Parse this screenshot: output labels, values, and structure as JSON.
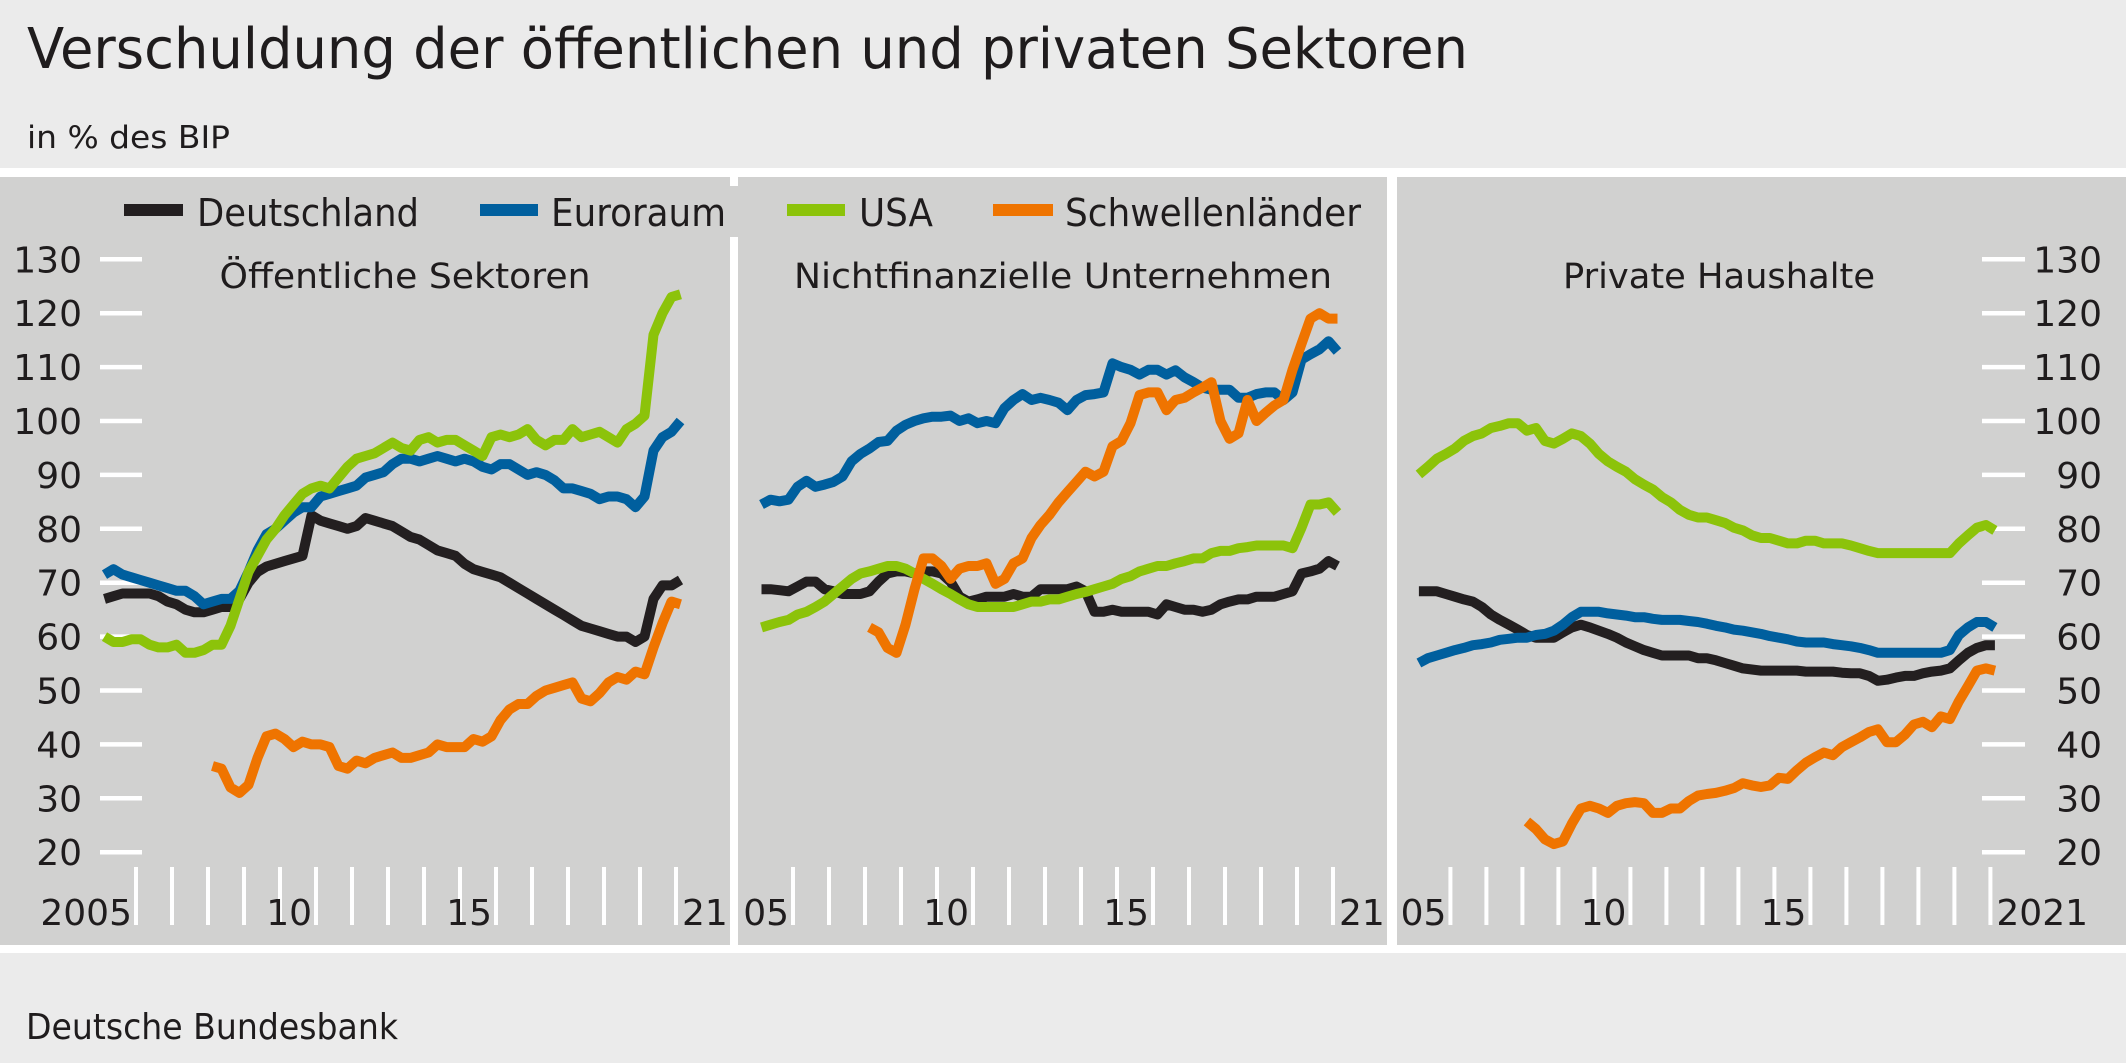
{
  "header": {
    "title": "Verschuldung der öffentlichen und privaten Sektoren",
    "subtitle": "in % des BIP"
  },
  "footer": {
    "source": "Deutsche Bundesbank"
  },
  "legend": [
    {
      "name": "Deutschland",
      "color": "#231f20"
    },
    {
      "name": "Euroraum",
      "color": "#005f9e"
    },
    {
      "name": "USA",
      "color": "#8cc30a"
    },
    {
      "name": "Schwellenländer",
      "color": "#ef7400"
    }
  ],
  "colors": {
    "panel_background": "#d1d1d0",
    "page_background": "#ebebeb",
    "gridline": "#ffffff"
  },
  "chart_data": [
    {
      "type": "line",
      "title": "Öffentliche Sektoren",
      "frequency": "quarterly",
      "x_range": [
        "2005 Q1",
        "2021 Q1"
      ],
      "x_tick_labels": [
        "2005",
        "10",
        "15",
        "21"
      ],
      "y_ticks": [
        "130",
        "120",
        "110",
        "100",
        "90",
        "80",
        "70",
        "60",
        "50",
        "40",
        "30",
        "20"
      ],
      "y_axis_side": "left",
      "ylim": [
        20,
        130
      ],
      "grid": false,
      "series": [
        {
          "name": "Deutschland",
          "color": "#231f20",
          "values": [
            67,
            67.5,
            68,
            68,
            68,
            68,
            67.5,
            66.5,
            66,
            65,
            64.5,
            64.5,
            65,
            65.5,
            65.5,
            67,
            70,
            72,
            73,
            73.5,
            74,
            74.5,
            75,
            82.5,
            81.5,
            81,
            80.5,
            80,
            80.5,
            82,
            81.5,
            81,
            80.5,
            79.5,
            78.5,
            78,
            77,
            76,
            75.5,
            75,
            73.5,
            72.5,
            72,
            71.5,
            71,
            70,
            69,
            68,
            67,
            66,
            65,
            64,
            63,
            62,
            61.5,
            61,
            60.5,
            60,
            60,
            59,
            60,
            67,
            69.5,
            69.5,
            70.5
          ]
        },
        {
          "name": "Euroraum",
          "color": "#005f9e",
          "values": [
            71.5,
            72.5,
            71.5,
            71,
            70.5,
            70,
            69.5,
            69,
            68.5,
            68.5,
            67.5,
            66,
            66.5,
            67,
            67,
            68.5,
            72,
            76,
            79,
            80,
            81.5,
            83,
            84,
            84,
            86,
            86.5,
            87,
            87.5,
            88,
            89.5,
            90,
            90.5,
            92,
            93,
            93,
            92.5,
            93,
            93.5,
            93,
            92.5,
            93,
            92.5,
            91.5,
            91,
            92,
            92,
            91,
            90,
            90.5,
            90,
            89,
            87.5,
            87.5,
            87,
            86.5,
            85.5,
            86,
            86,
            85.5,
            84,
            86,
            94.5,
            97,
            98,
            100
          ]
        },
        {
          "name": "USA",
          "color": "#8cc30a",
          "values": [
            60,
            59,
            59,
            59.5,
            59.5,
            58.5,
            58,
            58,
            58.5,
            57,
            57,
            57.5,
            58.5,
            58.5,
            62,
            67,
            72,
            75,
            78,
            80,
            82.5,
            84.5,
            86.5,
            87.5,
            88,
            87.5,
            89.5,
            91.5,
            93,
            93.5,
            94,
            95,
            96,
            95,
            94.5,
            96.5,
            97,
            96,
            96.5,
            96.5,
            95.5,
            94.5,
            93.5,
            97,
            97.5,
            97,
            97.5,
            98.5,
            96.5,
            95.5,
            96.5,
            96.5,
            98.5,
            97,
            97.5,
            98,
            97,
            96,
            98.5,
            99.5,
            101,
            116,
            120,
            123,
            123.5
          ]
        },
        {
          "name": "Schwellenländer",
          "color": "#ef7400",
          "values": [
            null,
            null,
            null,
            null,
            null,
            null,
            null,
            null,
            null,
            null,
            null,
            null,
            36,
            35.5,
            32,
            31,
            32.5,
            37.5,
            41.5,
            42,
            41,
            39.5,
            40.5,
            40,
            40,
            39.5,
            36,
            35.5,
            37,
            36.5,
            37.5,
            38,
            38.5,
            37.5,
            37.5,
            38,
            38.5,
            40,
            39.5,
            39.5,
            39.5,
            41,
            40.5,
            41.5,
            44.5,
            46.5,
            47.5,
            47.5,
            49,
            50,
            50.5,
            51,
            51.5,
            48.5,
            48,
            49.5,
            51.5,
            52.5,
            52,
            53.5,
            53,
            58,
            62.5,
            66.5,
            66
          ]
        }
      ]
    },
    {
      "type": "line",
      "title": "Nichtfinanzielle Unternehmen",
      "frequency": "quarterly",
      "x_range": [
        "2005 Q1",
        "2021 Q1"
      ],
      "x_tick_labels": [
        "05",
        "10",
        "15",
        "21"
      ],
      "ylim": [
        20,
        130
      ],
      "grid": false,
      "series": [
        {
          "name": "Deutschland",
          "color": "#231f20",
          "values": [
            68.8,
            68.8,
            68.6,
            68.4,
            69.3,
            70.2,
            70.2,
            68.8,
            68.4,
            67.9,
            67.9,
            67.9,
            68.4,
            70.2,
            71.7,
            72.1,
            72.1,
            71.7,
            72.1,
            72.1,
            71.7,
            70.2,
            67.4,
            66.5,
            66.9,
            67.4,
            67.4,
            67.4,
            67.9,
            67.4,
            67.4,
            68.8,
            68.8,
            68.8,
            68.8,
            69.3,
            68.4,
            64.6,
            64.6,
            65,
            64.6,
            64.6,
            64.6,
            64.6,
            64.1,
            66,
            65.5,
            65,
            65,
            64.6,
            65,
            66,
            66.5,
            66.9,
            66.9,
            67.4,
            67.4,
            67.4,
            67.9,
            68.4,
            71.7,
            72.1,
            72.6,
            74,
            73.1
          ]
        },
        {
          "name": "Euroraum",
          "color": "#005f9e",
          "values": [
            84.5,
            85.4,
            85.1,
            85.4,
            87.8,
            88.9,
            87.8,
            88.2,
            88.7,
            89.7,
            92.5,
            93.9,
            94.9,
            96.1,
            96.3,
            98.2,
            99.3,
            100,
            100.5,
            100.8,
            100.8,
            101,
            100,
            100.5,
            99.6,
            100,
            99.6,
            102.4,
            103.9,
            105,
            103.9,
            104.3,
            103.9,
            103.4,
            102,
            103.9,
            104.8,
            105,
            105.3,
            110.7,
            110,
            109.5,
            108.6,
            109.5,
            109.5,
            108.6,
            109.4,
            108.1,
            107.2,
            106.2,
            105.8,
            105.8,
            105.8,
            104.3,
            104.3,
            105,
            105.3,
            105.3,
            103.9,
            105.3,
            111.4,
            112.4,
            113.3,
            114.8,
            112.9
          ]
        },
        {
          "name": "USA",
          "color": "#8cc30a",
          "values": [
            61.7,
            62.2,
            62.7,
            63.1,
            64.1,
            64.6,
            65.5,
            66.5,
            67.9,
            69.3,
            70.7,
            71.7,
            72.1,
            72.6,
            73.1,
            73.1,
            72.6,
            71.7,
            70.7,
            69.8,
            68.8,
            67.9,
            66.9,
            66,
            65.5,
            65.5,
            65.5,
            65.5,
            65.5,
            66,
            66.5,
            66.5,
            66.9,
            66.9,
            67.4,
            67.9,
            68.3,
            68.8,
            69.3,
            69.8,
            70.7,
            71.2,
            72.1,
            72.6,
            73.1,
            73.1,
            73.6,
            74,
            74.5,
            74.5,
            75.5,
            75.9,
            75.9,
            76.4,
            76.6,
            76.9,
            76.9,
            76.9,
            76.9,
            76.4,
            80.2,
            84.5,
            84.5,
            84.9,
            83
          ]
        },
        {
          "name": "Schwellenländer",
          "color": "#ef7400",
          "values": [
            null,
            null,
            null,
            null,
            null,
            null,
            null,
            null,
            null,
            null,
            null,
            null,
            61.7,
            60.8,
            57.9,
            57,
            62.2,
            68.8,
            74.5,
            74.5,
            73.1,
            70.7,
            72.6,
            73.1,
            73.1,
            73.6,
            69.8,
            70.7,
            73.6,
            74.5,
            78.3,
            80.7,
            82.6,
            84.9,
            86.8,
            88.7,
            90.6,
            89.7,
            90.6,
            95.3,
            96.3,
            99.6,
            104.8,
            105.3,
            105.3,
            102,
            103.9,
            104.3,
            105.3,
            106.2,
            107.2,
            100,
            96.7,
            97.7,
            103.9,
            100,
            101.5,
            102.9,
            103.9,
            109.5,
            114.3,
            119,
            120,
            119,
            119
          ]
        }
      ]
    },
    {
      "type": "line",
      "title": "Private Haushalte",
      "frequency": "quarterly",
      "x_range": [
        "2005 Q1",
        "2021 Q1"
      ],
      "x_tick_labels": [
        "05",
        "10",
        "15",
        "2021"
      ],
      "y_ticks": [
        "130",
        "120",
        "110",
        "100",
        "90",
        "80",
        "70",
        "60",
        "50",
        "40",
        "30",
        "20"
      ],
      "y_axis_side": "right",
      "ylim": [
        20,
        130
      ],
      "grid": false,
      "series": [
        {
          "name": "Deutschland",
          "color": "#231f20",
          "values": [
            68.4,
            68.4,
            68.4,
            67.9,
            67.4,
            66.9,
            66.5,
            65.5,
            64.1,
            63.1,
            62.2,
            61.3,
            60.3,
            59.8,
            59.8,
            59.8,
            60.8,
            61.7,
            62.2,
            61.7,
            61.1,
            60.5,
            59.8,
            58.9,
            58.2,
            57.5,
            57,
            56.5,
            56.5,
            56.5,
            56.5,
            56,
            56,
            55.6,
            55.1,
            54.6,
            54.1,
            53.9,
            53.7,
            53.7,
            53.7,
            53.7,
            53.7,
            53.5,
            53.5,
            53.5,
            53.5,
            53.3,
            53.2,
            53.2,
            52.7,
            51.8,
            52,
            52.4,
            52.7,
            52.7,
            53.2,
            53.5,
            53.7,
            54.1,
            55.6,
            57,
            57.9,
            58.4,
            58.4
          ]
        },
        {
          "name": "Euroraum",
          "color": "#005f9e",
          "values": [
            55.1,
            56,
            56.5,
            57,
            57.5,
            57.9,
            58.4,
            58.6,
            58.9,
            59.4,
            59.6,
            59.8,
            59.8,
            60.3,
            60.5,
            61.1,
            62.2,
            63.6,
            64.6,
            64.6,
            64.6,
            64.3,
            64.1,
            63.9,
            63.6,
            63.6,
            63.3,
            63.1,
            63.1,
            63.1,
            62.9,
            62.7,
            62.4,
            62,
            61.7,
            61.3,
            61.1,
            60.8,
            60.5,
            60.1,
            59.8,
            59.5,
            59.1,
            58.9,
            58.9,
            58.9,
            58.6,
            58.4,
            58.2,
            57.9,
            57.5,
            57,
            57,
            57,
            57,
            57,
            57,
            57,
            57,
            57.5,
            60.3,
            61.7,
            62.7,
            62.7,
            61.7
          ]
        },
        {
          "name": "USA",
          "color": "#8cc30a",
          "values": [
            90.1,
            91.5,
            93,
            93.9,
            94.9,
            96.3,
            97.2,
            97.7,
            98.7,
            99.1,
            99.6,
            99.6,
            98.2,
            98.7,
            96.3,
            95.8,
            96.7,
            97.7,
            97.2,
            95.8,
            93.9,
            92.5,
            91.5,
            90.6,
            89.2,
            88.2,
            87.3,
            85.9,
            84.9,
            83.5,
            82.6,
            82.1,
            82.1,
            81.6,
            81.1,
            80.2,
            79.7,
            78.8,
            78.3,
            78.3,
            77.8,
            77.3,
            77.3,
            77.8,
            77.8,
            77.3,
            77.3,
            77.3,
            76.9,
            76.4,
            75.9,
            75.5,
            75.5,
            75.5,
            75.5,
            75.5,
            75.5,
            75.5,
            75.5,
            75.5,
            77.3,
            78.8,
            80.2,
            80.7,
            79.7
          ]
        },
        {
          "name": "Schwellenländer",
          "color": "#ef7400",
          "values": [
            null,
            null,
            null,
            null,
            null,
            null,
            null,
            null,
            null,
            null,
            null,
            null,
            25.7,
            24.3,
            22.4,
            21.5,
            22,
            25.3,
            28.1,
            28.6,
            28.1,
            27.3,
            28.6,
            29.1,
            29.3,
            29.1,
            27.3,
            27.3,
            28.1,
            28.1,
            29.5,
            30.5,
            30.8,
            31,
            31.4,
            31.9,
            32.8,
            32.4,
            32.1,
            32.4,
            33.8,
            33.6,
            35.2,
            36.6,
            37.6,
            38.5,
            38,
            39.5,
            40.4,
            41.3,
            42.3,
            42.8,
            40.4,
            40.4,
            41.8,
            43.7,
            44.2,
            43.2,
            45.2,
            44.7,
            48,
            50.8,
            53.7,
            54.1,
            53.7
          ]
        }
      ]
    }
  ]
}
